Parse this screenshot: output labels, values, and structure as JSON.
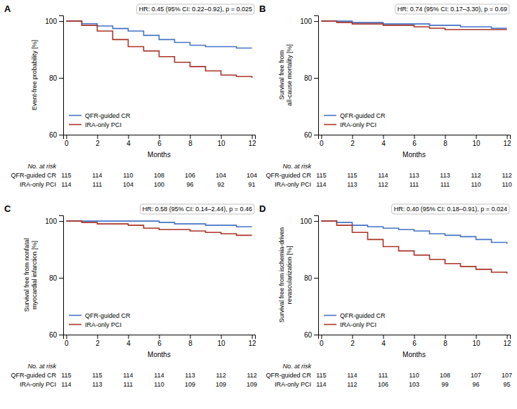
{
  "chart_data": [
    {
      "type": "step",
      "title": "A",
      "annotations": [
        "HR: 0.45 (95% CI: 0.22–0.92), p = 0.025"
      ],
      "xlabel": "Months",
      "ylabel": "Event-free probability [%]",
      "x": [
        0,
        1,
        2,
        3,
        4,
        5,
        6,
        7,
        8,
        9,
        10,
        11,
        12
      ],
      "series": [
        {
          "name": "QFR-guided CR",
          "color": "#4472c4",
          "values": [
            100,
            99.1,
            98.3,
            97.4,
            96.5,
            95.0,
            93.5,
            92.5,
            91.5,
            91.0,
            91.0,
            90.5,
            90.5
          ]
        },
        {
          "name": "IRA-only PCI",
          "color": "#a93226",
          "values": [
            100,
            98.5,
            96.5,
            93.5,
            91.0,
            89.5,
            87.5,
            85.5,
            84.0,
            82.5,
            81.0,
            80.5,
            80.0
          ]
        }
      ],
      "xlim": [
        -0.2,
        12.2
      ],
      "xticks": [
        0,
        2,
        4,
        6,
        8,
        10,
        12
      ],
      "ylim": [
        60,
        102
      ],
      "yticks": [
        60,
        80,
        100
      ],
      "legend": "lower left",
      "risk_table": {
        "title": "No. at risk",
        "x": [
          0,
          2,
          4,
          6,
          8,
          10,
          12
        ],
        "rows": [
          {
            "name": "QFR-guided CR",
            "values": [
              115,
              114,
              110,
              108,
              106,
              104,
              104
            ]
          },
          {
            "name": "IRA-only PCI",
            "values": [
              114,
              111,
              104,
              100,
              96,
              92,
              91
            ]
          }
        ]
      }
    },
    {
      "type": "step",
      "title": "B",
      "annotations": [
        "HR: 0.74 (95% CI: 0.17–3.30), p = 0.69"
      ],
      "xlabel": "Months",
      "ylabel": "Survival free from\nall-cause mortality [%]",
      "x": [
        0,
        1,
        2,
        3,
        4,
        5,
        6,
        7,
        8,
        9,
        10,
        11,
        12
      ],
      "series": [
        {
          "name": "QFR-guided CR",
          "color": "#4472c4",
          "values": [
            100,
            100,
            99.5,
            99.5,
            99.0,
            99.0,
            99.0,
            98.5,
            98.5,
            98.0,
            98.0,
            97.5,
            97.5
          ]
        },
        {
          "name": "IRA-only PCI",
          "color": "#a93226",
          "values": [
            100,
            99.5,
            99.0,
            99.0,
            98.5,
            98.5,
            98.0,
            97.5,
            97.0,
            97.0,
            97.0,
            97.0,
            97.0
          ]
        }
      ],
      "xlim": [
        -0.2,
        12.2
      ],
      "xticks": [
        0,
        2,
        4,
        6,
        8,
        10,
        12
      ],
      "ylim": [
        60,
        102
      ],
      "yticks": [
        60,
        80,
        100
      ],
      "legend": "lower left",
      "risk_table": {
        "title": "No. at risk",
        "x": [
          0,
          2,
          4,
          6,
          8,
          10,
          12
        ],
        "rows": [
          {
            "name": "QFR-guided CR",
            "values": [
              115,
              115,
              114,
              113,
              113,
              112,
              112
            ]
          },
          {
            "name": "IRA-only PCI",
            "values": [
              114,
              113,
              112,
              111,
              111,
              110,
              110
            ]
          }
        ]
      }
    },
    {
      "type": "step",
      "title": "C",
      "annotations": [
        "HR: 0.58 (95% CI: 0.14–2.44), p = 0.46"
      ],
      "xlabel": "Months",
      "ylabel": "Survival free from nonfatal\nmyocardial infarction [%]",
      "x": [
        0,
        1,
        2,
        3,
        4,
        5,
        6,
        7,
        8,
        9,
        10,
        11,
        12
      ],
      "series": [
        {
          "name": "QFR-guided CR",
          "color": "#4472c4",
          "values": [
            100,
            100,
            100,
            100,
            100,
            100,
            99.5,
            99.0,
            99.0,
            98.5,
            98.5,
            98.0,
            98.0
          ]
        },
        {
          "name": "IRA-only PCI",
          "color": "#a93226",
          "values": [
            100,
            99.5,
            99.0,
            99.0,
            98.5,
            97.5,
            97.0,
            97.0,
            96.5,
            96.0,
            95.5,
            95.0,
            95.0
          ]
        }
      ],
      "xlim": [
        -0.2,
        12.2
      ],
      "xticks": [
        0,
        2,
        4,
        6,
        8,
        10,
        12
      ],
      "ylim": [
        60,
        102
      ],
      "yticks": [
        60,
        80,
        100
      ],
      "legend": "lower left",
      "risk_table": {
        "title": "No. at risk",
        "x": [
          0,
          2,
          4,
          6,
          8,
          10,
          12
        ],
        "rows": [
          {
            "name": "QFR-guided CR",
            "values": [
              115,
              115,
              114,
              114,
              113,
              112,
              112
            ]
          },
          {
            "name": "IRA-only PCI",
            "values": [
              114,
              113,
              111,
              110,
              109,
              109,
              109
            ]
          }
        ]
      }
    },
    {
      "type": "step",
      "title": "D",
      "annotations": [
        "HR: 0.40 (95% CI: 0.18–0.91), p = 0.024"
      ],
      "xlabel": "Months",
      "ylabel": "Survival free from ischemia-driven\nrevascularization [%]",
      "x": [
        0,
        1,
        2,
        3,
        4,
        5,
        6,
        7,
        8,
        9,
        10,
        11,
        12
      ],
      "series": [
        {
          "name": "QFR-guided CR",
          "color": "#4472c4",
          "values": [
            100,
            99.5,
            98.5,
            98.0,
            97.5,
            97.0,
            96.5,
            95.5,
            95.0,
            94.5,
            93.5,
            92.5,
            92.0
          ]
        },
        {
          "name": "IRA-only PCI",
          "color": "#a93226",
          "values": [
            100,
            98.5,
            96.0,
            93.5,
            91.0,
            89.5,
            88.0,
            86.5,
            85.0,
            84.0,
            83.0,
            82.0,
            81.5
          ]
        }
      ],
      "xlim": [
        -0.2,
        12.2
      ],
      "xticks": [
        0,
        2,
        4,
        6,
        8,
        10,
        12
      ],
      "ylim": [
        60,
        102
      ],
      "yticks": [
        60,
        80,
        100
      ],
      "legend": "lower left",
      "risk_table": {
        "title": "No. at risk",
        "x": [
          0,
          2,
          4,
          6,
          8,
          10,
          12
        ],
        "rows": [
          {
            "name": "QFR-guided CR",
            "values": [
              115,
              114,
              111,
              110,
              108,
              107,
              107
            ]
          },
          {
            "name": "IRA-only PCI",
            "values": [
              114,
              112,
              106,
              103,
              99,
              96,
              95
            ]
          }
        ]
      }
    }
  ]
}
